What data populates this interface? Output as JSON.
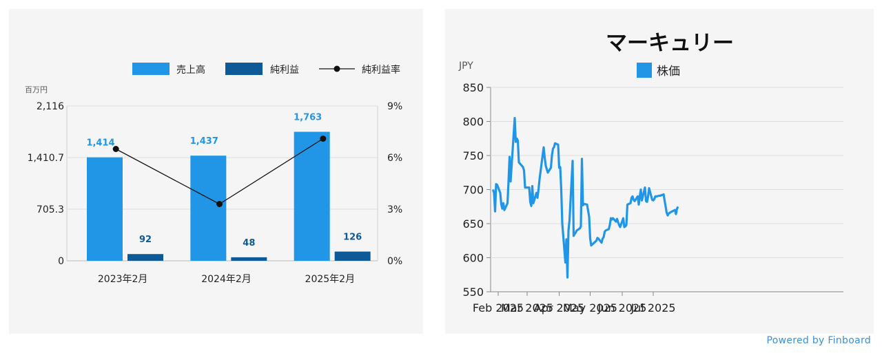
{
  "colors": {
    "revenue": "#2196e6",
    "net_income": "#0d5a96",
    "line": "#111111",
    "stock": "#2196e6",
    "powered": "#3a8fd8"
  },
  "footer": {
    "powered_by": "Powered by Finboard"
  },
  "chart_data": [
    {
      "type": "bar",
      "title": "",
      "ylabel": "百万円",
      "categories": [
        "2023年2月",
        "2024年2月",
        "2025年2月"
      ],
      "ylim": [
        0,
        2116
      ],
      "y_ticks": [
        "2,116",
        "1,410.7",
        "705.3",
        "0"
      ],
      "y2lim": [
        0,
        9
      ],
      "y2_ticks": [
        "9%",
        "6%",
        "3%",
        "0%"
      ],
      "legend_position": "top-right",
      "series": [
        {
          "name": "売上高",
          "type": "bar",
          "values": [
            1414,
            1437,
            1763
          ],
          "labels": [
            "1,414",
            "1,437",
            "1,763"
          ]
        },
        {
          "name": "純利益",
          "type": "bar",
          "values": [
            92,
            48,
            126
          ],
          "labels": [
            "92",
            "48",
            "126"
          ]
        },
        {
          "name": "純利益率",
          "type": "line",
          "axis": "right",
          "values": [
            6.5,
            3.3,
            7.1
          ]
        }
      ]
    },
    {
      "type": "line",
      "title": "マーキュリー",
      "ylabel": "JPY",
      "ylim": [
        550,
        850
      ],
      "y_ticks": [
        "850",
        "800",
        "750",
        "700",
        "650",
        "600",
        "550"
      ],
      "x_ticks": [
        {
          "label": "Feb 2025",
          "date": "2025-02-01"
        },
        {
          "label": "Mar 2025",
          "date": "2025-03-01"
        },
        {
          "label": "Apr 2025",
          "date": "2025-04-01"
        },
        {
          "label": "May 2025",
          "date": "2025-05-01"
        },
        {
          "label": "Jun 2025",
          "date": "2025-06-01"
        },
        {
          "label": "Jul 2025",
          "date": "2025-07-01"
        }
      ],
      "legend_position": "top-center",
      "series": [
        {
          "name": "株価",
          "points": [
            [
              "2025-01-27",
              700
            ],
            [
              "2025-01-28",
              695
            ],
            [
              "2025-01-29",
              668
            ],
            [
              "2025-01-30",
              708
            ],
            [
              "2025-01-31",
              707
            ],
            [
              "2025-02-03",
              695
            ],
            [
              "2025-02-04",
              678
            ],
            [
              "2025-02-05",
              672
            ],
            [
              "2025-02-06",
              680
            ],
            [
              "2025-02-07",
              670
            ],
            [
              "2025-02-10",
              680
            ],
            [
              "2025-02-11",
              712
            ],
            [
              "2025-02-12",
              748
            ],
            [
              "2025-02-13",
              712
            ],
            [
              "2025-02-14",
              735
            ],
            [
              "2025-02-17",
              805
            ],
            [
              "2025-02-18",
              770
            ],
            [
              "2025-02-19",
              775
            ],
            [
              "2025-02-20",
              772
            ],
            [
              "2025-02-21",
              740
            ],
            [
              "2025-02-25",
              733
            ],
            [
              "2025-02-26",
              728
            ],
            [
              "2025-02-27",
              703
            ],
            [
              "2025-02-28",
              703
            ],
            [
              "2025-03-03",
              703
            ],
            [
              "2025-03-04",
              682
            ],
            [
              "2025-03-05",
              676
            ],
            [
              "2025-03-06",
              705
            ],
            [
              "2025-03-07",
              680
            ],
            [
              "2025-03-10",
              695
            ],
            [
              "2025-03-11",
              688
            ],
            [
              "2025-03-12",
              700
            ],
            [
              "2025-03-13",
              715
            ],
            [
              "2025-03-17",
              762
            ],
            [
              "2025-03-18",
              747
            ],
            [
              "2025-03-19",
              735
            ],
            [
              "2025-03-21",
              725
            ],
            [
              "2025-03-24",
              732
            ],
            [
              "2025-03-25",
              750
            ],
            [
              "2025-03-26",
              760
            ],
            [
              "2025-03-27",
              762
            ],
            [
              "2025-03-28",
              768
            ],
            [
              "2025-03-31",
              766
            ],
            [
              "2025-04-01",
              732
            ],
            [
              "2025-04-02",
              733
            ],
            [
              "2025-04-03",
              700
            ],
            [
              "2025-04-04",
              650
            ],
            [
              "2025-04-07",
              593
            ],
            [
              "2025-04-08",
              627
            ],
            [
              "2025-04-09",
              571
            ],
            [
              "2025-04-10",
              640
            ],
            [
              "2025-04-11",
              655
            ],
            [
              "2025-04-14",
              742
            ],
            [
              "2025-04-15",
              632
            ],
            [
              "2025-04-16",
              635
            ],
            [
              "2025-04-17",
              637
            ],
            [
              "2025-04-18",
              640
            ],
            [
              "2025-04-21",
              643
            ],
            [
              "2025-04-22",
              646
            ],
            [
              "2025-04-23",
              745
            ],
            [
              "2025-04-24",
              677
            ],
            [
              "2025-04-25",
              679
            ],
            [
              "2025-04-28",
              678
            ],
            [
              "2025-04-30",
              660
            ],
            [
              "2025-05-01",
              628
            ],
            [
              "2025-05-02",
              618
            ],
            [
              "2025-05-07",
              625
            ],
            [
              "2025-05-08",
              629
            ],
            [
              "2025-05-09",
              628
            ],
            [
              "2025-05-12",
              622
            ],
            [
              "2025-05-13",
              628
            ],
            [
              "2025-05-14",
              630
            ],
            [
              "2025-05-15",
              638
            ],
            [
              "2025-05-16",
              640
            ],
            [
              "2025-05-19",
              642
            ],
            [
              "2025-05-20",
              648
            ],
            [
              "2025-05-21",
              658
            ],
            [
              "2025-05-22",
              656
            ],
            [
              "2025-05-23",
              658
            ],
            [
              "2025-05-26",
              653
            ],
            [
              "2025-05-27",
              657
            ],
            [
              "2025-05-28",
              652
            ],
            [
              "2025-05-29",
              648
            ],
            [
              "2025-05-30",
              645
            ],
            [
              "2025-06-02",
              658
            ],
            [
              "2025-06-03",
              645
            ],
            [
              "2025-06-04",
              646
            ],
            [
              "2025-06-05",
              648
            ],
            [
              "2025-06-06",
              678
            ],
            [
              "2025-06-09",
              680
            ],
            [
              "2025-06-10",
              688
            ],
            [
              "2025-06-11",
              690
            ],
            [
              "2025-06-12",
              685
            ],
            [
              "2025-06-13",
              683
            ],
            [
              "2025-06-16",
              690
            ],
            [
              "2025-06-17",
              678
            ],
            [
              "2025-06-18",
              690
            ],
            [
              "2025-06-19",
              700
            ],
            [
              "2025-06-20",
              684
            ],
            [
              "2025-06-23",
              703
            ],
            [
              "2025-06-24",
              683
            ],
            [
              "2025-06-25",
              682
            ],
            [
              "2025-06-26",
              690
            ],
            [
              "2025-06-27",
              702
            ],
            [
              "2025-06-30",
              685
            ],
            [
              "2025-07-01",
              684
            ],
            [
              "2025-07-02",
              686
            ],
            [
              "2025-07-03",
              690
            ],
            [
              "2025-07-04",
              690
            ],
            [
              "2025-07-07",
              691
            ],
            [
              "2025-07-08",
              691
            ],
            [
              "2025-07-09",
              692
            ],
            [
              "2025-07-10",
              692
            ],
            [
              "2025-07-11",
              693
            ],
            [
              "2025-07-14",
              666
            ],
            [
              "2025-07-15",
              662
            ],
            [
              "2025-07-16",
              665
            ],
            [
              "2025-07-17",
              666
            ],
            [
              "2025-07-18",
              667
            ],
            [
              "2025-07-22",
              670
            ],
            [
              "2025-07-23",
              664
            ],
            [
              "2025-07-24",
              672
            ],
            [
              "2025-07-25",
              675
            ]
          ]
        }
      ]
    }
  ]
}
